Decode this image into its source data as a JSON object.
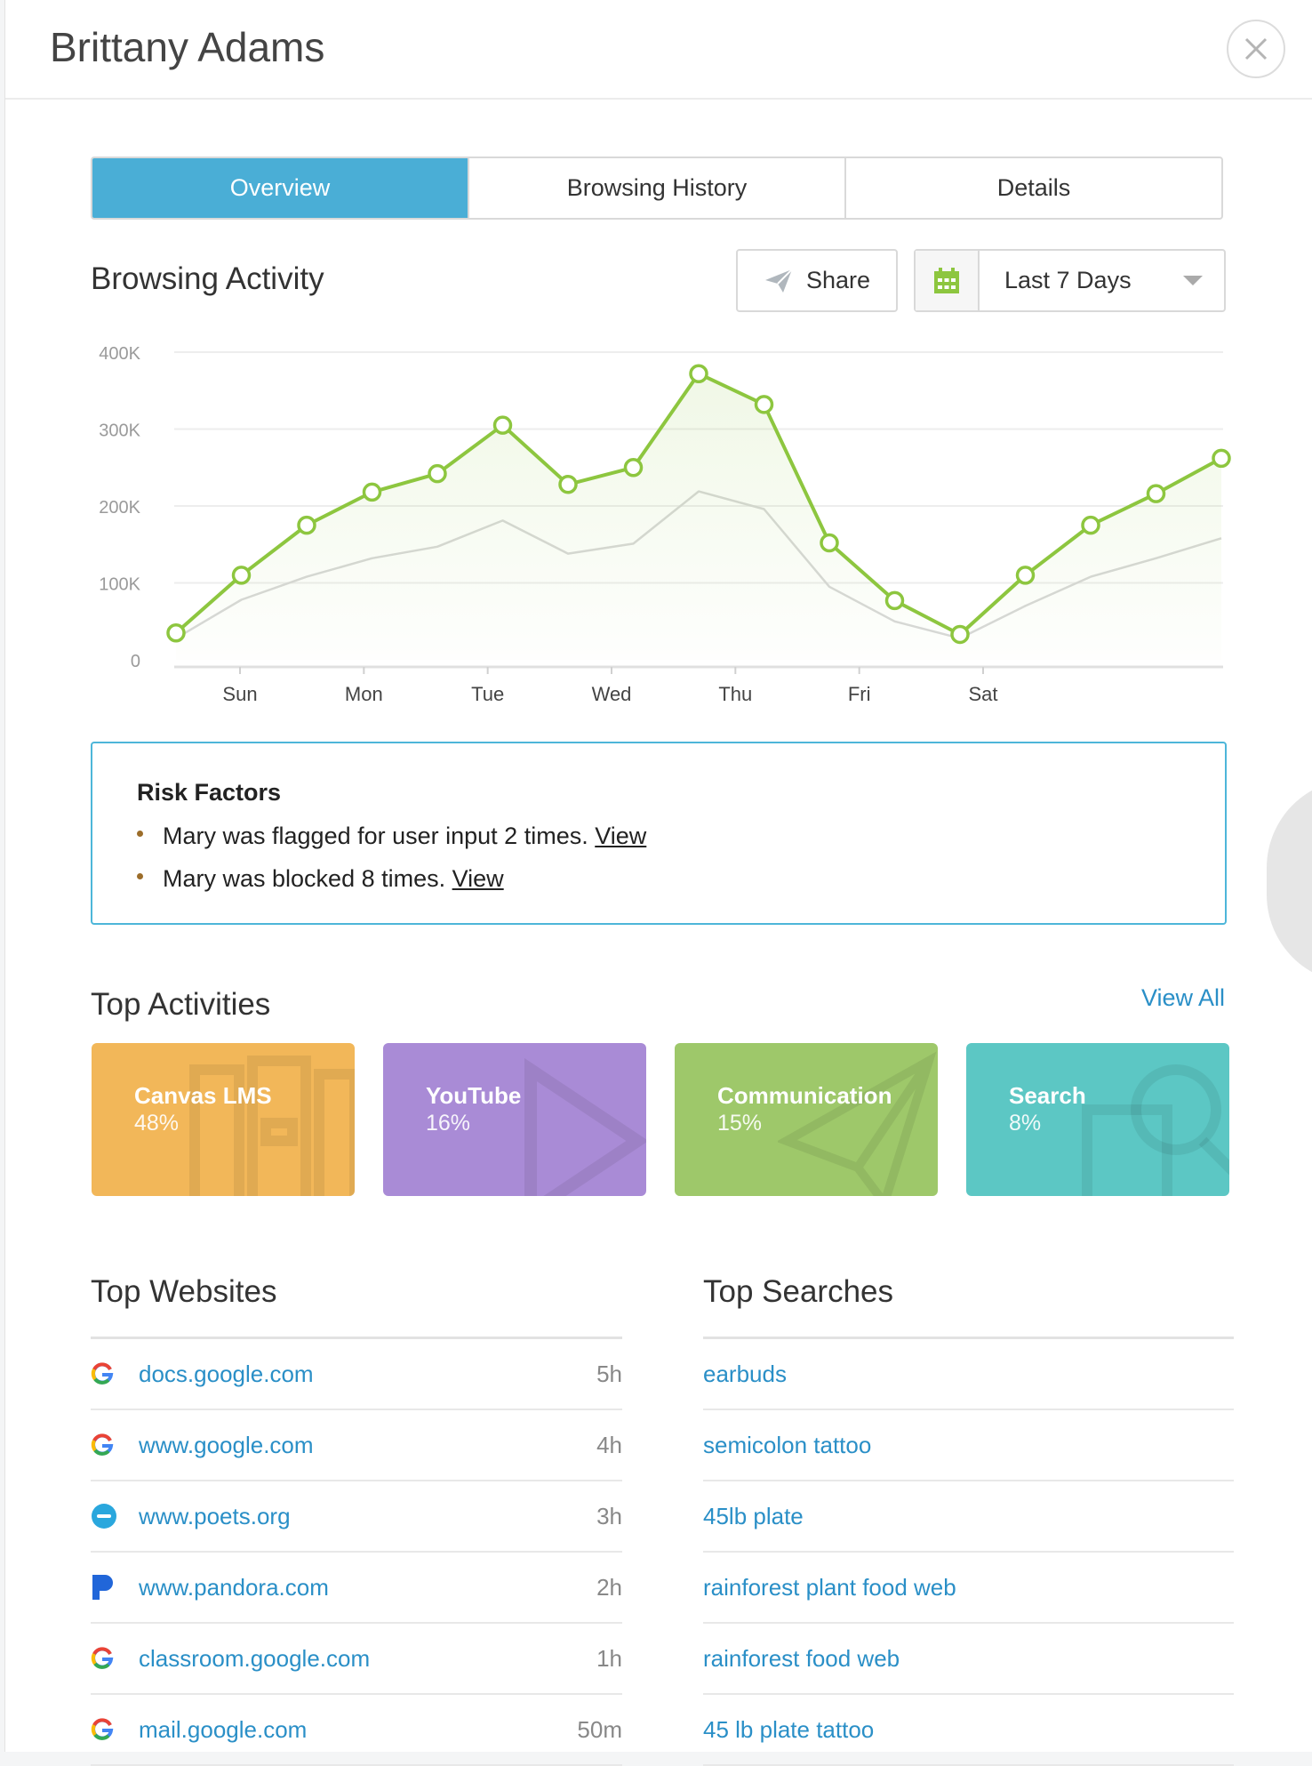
{
  "header": {
    "title": "Brittany Adams"
  },
  "tabs": [
    {
      "label": "Overview",
      "active": true
    },
    {
      "label": "Browsing History",
      "active": false
    },
    {
      "label": "Details",
      "active": false
    }
  ],
  "activity": {
    "title": "Browsing Activity",
    "share_label": "Share",
    "range_label": "Last 7 Days"
  },
  "chart_data": {
    "type": "area",
    "categories": [
      "Sun",
      "Mon",
      "Tue",
      "Wed",
      "Thu",
      "Fri",
      "Sat"
    ],
    "y_ticks": [
      "400K",
      "300K",
      "200K",
      "100K",
      "0"
    ],
    "ylim": [
      0,
      400000
    ],
    "grid": true,
    "series": [
      {
        "points": [
          35000,
          110000,
          175000,
          218000,
          242000,
          305000,
          228000,
          250000,
          372000,
          332000,
          152000,
          77000,
          33000,
          110000,
          175000,
          216000,
          262000
        ],
        "color": "#8dc63f",
        "markers": true
      },
      {
        "points": [
          28000,
          78000,
          108000,
          132000,
          147000,
          181000,
          138000,
          151000,
          219000,
          196000,
          95000,
          50000,
          28000,
          70000,
          108000,
          132000,
          158000
        ],
        "color": "#d8d8d8",
        "markers": false
      }
    ]
  },
  "risk": {
    "title": "Risk Factors",
    "items": [
      {
        "text": "Mary was flagged for user input 2 times.",
        "link": "View"
      },
      {
        "text": "Mary was blocked 8 times.",
        "link": "View"
      }
    ]
  },
  "top_activities": {
    "title": "Top Activities",
    "view_all": "View All",
    "cards": [
      {
        "name": "Canvas LMS",
        "pct": "48%",
        "color": "#f2b759"
      },
      {
        "name": "YouTube",
        "pct": "16%",
        "color": "#a98bd6"
      },
      {
        "name": "Communication",
        "pct": "15%",
        "color": "#9ec86a"
      },
      {
        "name": "Search",
        "pct": "8%",
        "color": "#5cc7c4"
      }
    ]
  },
  "top_websites": {
    "title": "Top Websites",
    "rows": [
      {
        "site": "docs.google.com",
        "time": "5h",
        "icon": "google-icon"
      },
      {
        "site": "www.google.com",
        "time": "4h",
        "icon": "google-icon"
      },
      {
        "site": "www.poets.org",
        "time": "3h",
        "icon": "poets-icon"
      },
      {
        "site": "www.pandora.com",
        "time": "2h",
        "icon": "pandora-icon"
      },
      {
        "site": "classroom.google.com",
        "time": "1h",
        "icon": "google-icon"
      },
      {
        "site": "mail.google.com",
        "time": "50m",
        "icon": "google-icon"
      }
    ]
  },
  "top_searches": {
    "title": "Top Searches",
    "rows": [
      "earbuds",
      "semicolon tattoo",
      "45lb plate",
      "rainforest plant food web",
      "rainforest food web",
      "45 lb plate tattoo"
    ]
  }
}
